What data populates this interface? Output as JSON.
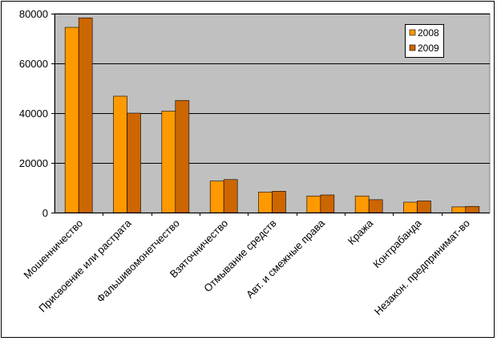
{
  "chart_data": {
    "type": "bar",
    "categories": [
      "Мошенничество",
      "Присвоение или растрата",
      "Фальшивомонетчество",
      "Взяточничество",
      "Отмывание средств",
      "Авт. и смежные права",
      "Кража",
      "Контрабанда",
      "Незакон. предпринимат-во"
    ],
    "series": [
      {
        "name": "2008",
        "color": "#FF9900",
        "values": [
          74500,
          46800,
          40800,
          12700,
          8300,
          6700,
          6700,
          4200,
          2300
        ]
      },
      {
        "name": "2009",
        "color": "#CC6600",
        "values": [
          78300,
          40000,
          45100,
          13300,
          8600,
          7100,
          5200,
          4700,
          2500
        ]
      }
    ],
    "ylim": [
      0,
      80000
    ],
    "yticks": [
      "0",
      "20000",
      "40000",
      "60000",
      "80000"
    ],
    "title": "",
    "xlabel": "",
    "ylabel": "",
    "grid": true,
    "legend_position": "top-right",
    "plot_background": "#C0C0C0"
  }
}
